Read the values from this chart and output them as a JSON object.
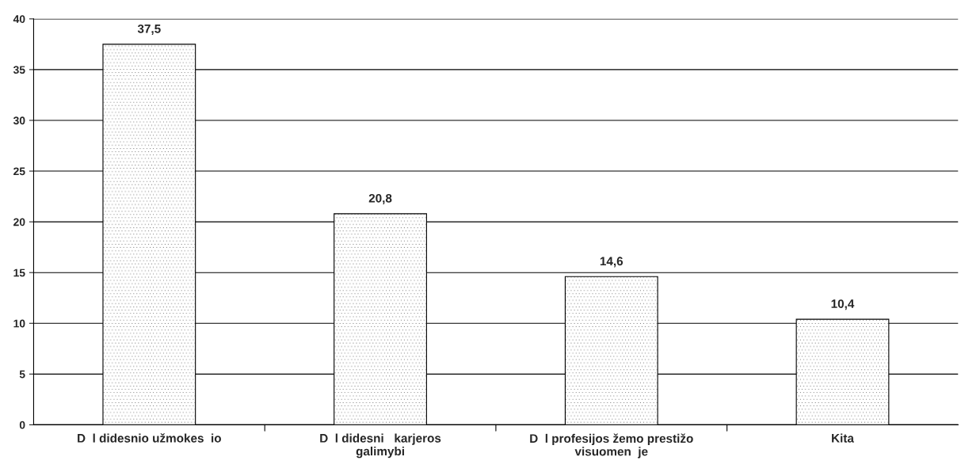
{
  "chart_data": {
    "type": "bar",
    "categories": [
      "D  l didesnio užmokes  io",
      "D  l didesni   karjeros\ngalimybi",
      "D  l profesijos žemo prestižo\nvisuomen  je",
      "Kita"
    ],
    "values": [
      37.5,
      20.8,
      14.6,
      10.4
    ],
    "value_labels": [
      "37,5",
      "20,8",
      "14,6",
      "10,4"
    ],
    "color": "#ffffff",
    "ylim": [
      0,
      40
    ],
    "yticks": [
      0,
      5,
      10,
      15,
      20,
      25,
      30,
      35,
      40
    ],
    "grid": "y",
    "legend": false
  }
}
